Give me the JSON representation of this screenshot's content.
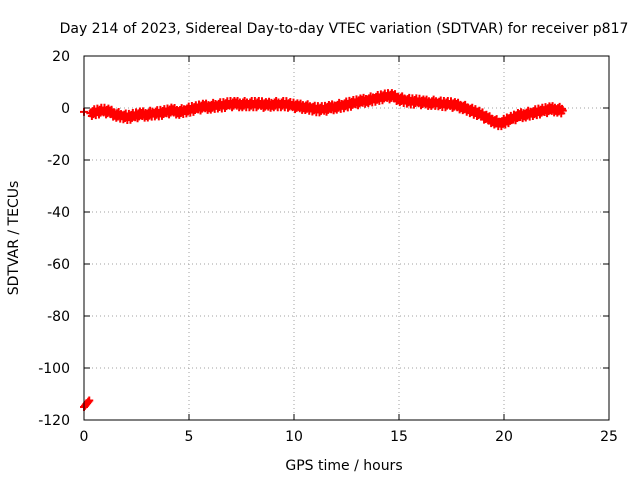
{
  "chart_data": {
    "type": "scatter",
    "title": "Day 214 of 2023, Sidereal Day-to-day VTEC variation (SDTVAR) for receiver p817",
    "xlabel": "GPS time / hours",
    "ylabel": "SDTVAR / TECUs",
    "xlim": [
      0,
      25
    ],
    "ylim": [
      -120,
      20
    ],
    "xticks": [
      "0",
      "5",
      "10",
      "15",
      "20",
      "25"
    ],
    "yticks": [
      "20",
      "0",
      "-20",
      "-40",
      "-60",
      "-80",
      "-100",
      "-120"
    ],
    "grid": true,
    "marker": "plus",
    "series": [
      {
        "name": "SDTVAR",
        "color": "#ff0000",
        "x": [
          0.0,
          0.05,
          0.1,
          0.15,
          0.2,
          0.25,
          0.0,
          0.3,
          0.6,
          0.9,
          1.2,
          1.5,
          1.8,
          2.1,
          2.4,
          2.7,
          3.0,
          3.3,
          3.6,
          3.9,
          4.2,
          4.5,
          4.8,
          5.1,
          5.4,
          5.7,
          6.0,
          6.3,
          6.6,
          6.9,
          7.2,
          7.5,
          7.8,
          8.1,
          8.4,
          8.7,
          9.0,
          9.3,
          9.6,
          9.9,
          10.2,
          10.5,
          10.8,
          11.1,
          11.4,
          11.7,
          12.0,
          12.3,
          12.6,
          12.9,
          13.2,
          13.5,
          13.8,
          14.1,
          14.4,
          14.7,
          15.0,
          15.3,
          15.6,
          15.9,
          16.2,
          16.5,
          16.8,
          17.1,
          17.4,
          17.7,
          18.0,
          18.3,
          18.6,
          18.9,
          19.2,
          19.5,
          19.8,
          20.1,
          20.4,
          20.7,
          21.0,
          21.3,
          21.6,
          21.9,
          22.2,
          22.5,
          22.8
        ],
        "y": [
          -115,
          -114.5,
          -114,
          -113.5,
          -113,
          -112.5,
          -1.5,
          -2,
          -1.5,
          -1,
          -1.5,
          -2.5,
          -3,
          -3.5,
          -3,
          -2.5,
          -2.5,
          -2,
          -2,
          -1.5,
          -1,
          -1.5,
          -1,
          -0.5,
          0,
          0.5,
          0.5,
          1,
          1,
          1.5,
          1.5,
          1.5,
          1.5,
          1.5,
          1.5,
          1,
          1.5,
          1.5,
          1.5,
          1,
          0.5,
          0.5,
          0,
          -0.5,
          -0.5,
          0,
          0.5,
          1,
          1.5,
          2,
          2.5,
          3,
          3.5,
          4,
          4.5,
          4.5,
          3.5,
          3,
          2.5,
          2.5,
          2,
          2,
          2,
          1.5,
          1.5,
          1,
          0.5,
          -0.5,
          -1.5,
          -2.5,
          -4,
          -5,
          -6,
          -5,
          -4,
          -3,
          -2.5,
          -2,
          -1.5,
          -1,
          -0.5,
          -0.5,
          -1
        ]
      }
    ]
  }
}
